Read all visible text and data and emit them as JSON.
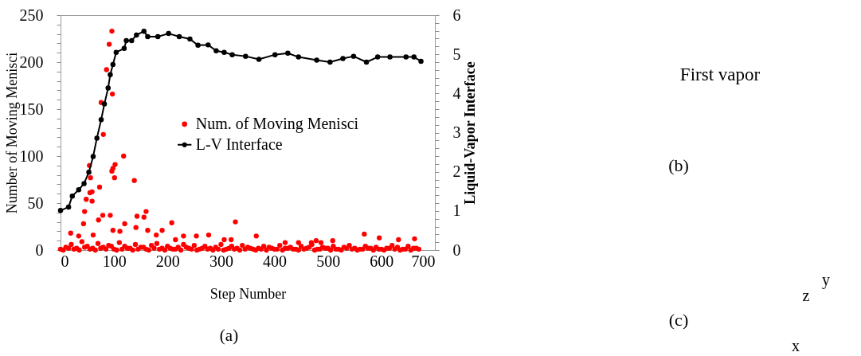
{
  "chart_data": [
    {
      "type": "scatter",
      "xlabel": "Step Number",
      "ylabel": "Number of Moving Menisci",
      "y2label": "Liquid-Vapor Interface",
      "annotations": [
        "(a)"
      ],
      "legend": "center",
      "marker": "circle",
      "xlim": [
        0,
        700
      ],
      "xticks": [
        0,
        100,
        200,
        300,
        400,
        500,
        600,
        700
      ],
      "ylim": [
        0,
        250
      ],
      "yticks": [
        0,
        {
          "value": 10,
          "label": null
        },
        {
          "value": 20,
          "label": null
        },
        {
          "value": 30,
          "label": null
        },
        {
          "value": 40,
          "label": null
        },
        50,
        {
          "value": 60,
          "label": null
        },
        {
          "value": 70,
          "label": null
        },
        {
          "value": 80,
          "label": null
        },
        {
          "value": 90,
          "label": null
        },
        100,
        {
          "value": 110,
          "label": null
        },
        {
          "value": 120,
          "label": null
        },
        {
          "value": 130,
          "label": null
        },
        {
          "value": 140,
          "label": null
        },
        150,
        {
          "value": 160,
          "label": null
        },
        {
          "value": 170,
          "label": null
        },
        {
          "value": 180,
          "label": null
        },
        {
          "value": 190,
          "label": null
        },
        200,
        {
          "value": 210,
          "label": null
        },
        {
          "value": 220,
          "label": null
        },
        {
          "value": 230,
          "label": null
        },
        {
          "value": 240,
          "label": null
        },
        250
      ],
      "y2lim": [
        0,
        6
      ],
      "y2ticks": [
        0,
        {
          "value": 0.2,
          "label": null
        },
        {
          "value": 0.4,
          "label": null
        },
        {
          "value": 0.6,
          "label": null
        },
        {
          "value": 0.8,
          "label": null
        },
        1,
        {
          "value": 1.2,
          "label": null
        },
        {
          "value": 1.4,
          "label": null
        },
        {
          "value": 1.6,
          "label": null
        },
        {
          "value": 1.8,
          "label": null
        },
        2,
        {
          "value": 2.2,
          "label": null
        },
        {
          "value": 2.4,
          "label": null
        },
        {
          "value": 2.6,
          "label": null
        },
        {
          "value": 2.8,
          "label": null
        },
        3,
        {
          "value": 3.2,
          "label": null
        },
        {
          "value": 3.4,
          "label": null
        },
        {
          "value": 3.6,
          "label": null
        },
        {
          "value": 3.8,
          "label": null
        },
        4,
        {
          "value": 4.2,
          "label": null
        },
        {
          "value": 4.4,
          "label": null
        },
        {
          "value": 4.6,
          "label": null
        },
        {
          "value": 4.8,
          "label": null
        },
        5,
        {
          "value": 5.2,
          "label": null
        },
        {
          "value": 5.4,
          "label": null
        },
        {
          "value": 5.6,
          "label": null
        },
        {
          "value": 5.8,
          "label": null
        },
        6
      ],
      "series": [
        {
          "name": "Num. of Moving Menisci",
          "type": "scatter",
          "color": "#ff0000",
          "x": [
            96,
            91,
            86,
            97,
            76,
            80,
            118,
            102,
            98,
            96,
            101,
            138,
            54,
            56,
            73,
            55,
            59,
            48,
            59,
            45,
            160,
            156,
            143,
            93,
            79,
            71,
            43,
            120,
            208,
            327,
            141,
            98,
            111,
            163,
            190,
            179,
            230,
            254,
            277,
            19,
            34,
            61,
            215,
            306,
            319,
            366,
            568,
            596,
            632,
            662,
            445,
            469,
            487,
            509,
            420,
            478,
            0,
            10,
            20,
            30,
            40,
            50,
            60,
            70,
            80,
            90,
            100,
            110,
            120,
            130,
            140,
            150,
            160,
            170,
            180,
            190,
            200,
            210,
            220,
            230,
            240,
            250,
            260,
            270,
            280,
            290,
            300,
            310,
            320,
            330,
            340,
            350,
            360,
            370,
            380,
            390,
            400,
            410,
            420,
            430,
            440,
            450,
            460,
            470,
            480,
            490,
            500,
            510,
            520,
            530,
            540,
            550,
            560,
            570,
            580,
            590,
            600,
            610,
            620,
            630,
            640,
            650,
            660,
            670,
            5,
            15,
            25,
            35,
            45,
            55,
            65,
            75,
            85,
            95,
            105,
            115,
            125,
            135,
            145,
            155,
            165,
            175,
            185,
            195,
            205,
            215,
            225,
            235,
            245,
            255,
            265,
            275,
            285,
            295,
            305,
            315,
            325,
            335,
            345,
            355,
            365,
            375,
            385,
            395,
            405,
            415,
            425,
            435,
            445,
            455,
            465,
            475,
            485,
            495,
            505,
            515,
            525,
            535,
            545,
            555,
            565,
            575,
            585,
            595,
            605,
            615,
            625,
            635,
            645,
            655,
            665
          ],
          "values": [
            233,
            219,
            192,
            166,
            157,
            123,
            100,
            91,
            87,
            84,
            77,
            74,
            90,
            77,
            67,
            61,
            62,
            54,
            52,
            41,
            41,
            35,
            36,
            37,
            37,
            32,
            28,
            28,
            29,
            30,
            24,
            21,
            20,
            21,
            21,
            16,
            15,
            15,
            16,
            18,
            15,
            16,
            11,
            11,
            11,
            15,
            17,
            13,
            11,
            12,
            8,
            8,
            8,
            10,
            8,
            10,
            1,
            3,
            6,
            2,
            9,
            4,
            2,
            7,
            3,
            5,
            1,
            8,
            4,
            2,
            6,
            3,
            1,
            5,
            7,
            2,
            4,
            1,
            3,
            6,
            2,
            5,
            1,
            4,
            2,
            3,
            6,
            1,
            4,
            2,
            5,
            3,
            1,
            2,
            4,
            3,
            1,
            5,
            2,
            3,
            1,
            4,
            2,
            6,
            1,
            3,
            2,
            4,
            1,
            3,
            5,
            2,
            1,
            4,
            2,
            3,
            1,
            2,
            5,
            3,
            1,
            4,
            2,
            1,
            0,
            2,
            1,
            0,
            3,
            1,
            0,
            2,
            1,
            4,
            0,
            1,
            2,
            0,
            1,
            3,
            0,
            2,
            1,
            0,
            2,
            1,
            0,
            3,
            1,
            0,
            2,
            1,
            0,
            1,
            0,
            2,
            1,
            0,
            1,
            2,
            0,
            1,
            0,
            2,
            1,
            0,
            2,
            1,
            0,
            1,
            3,
            0,
            1,
            2,
            0,
            1,
            0,
            2,
            1,
            0,
            1,
            2,
            0,
            1,
            0,
            2,
            1,
            0,
            1,
            0,
            2
          ]
        },
        {
          "name": "L-V Interface",
          "type": "line",
          "axis": "y2",
          "color": "#000000",
          "line_style": "solid",
          "x": [
            0,
            15,
            22,
            34,
            44,
            53,
            61,
            68,
            76,
            82,
            89,
            93,
            98,
            104,
            119,
            123,
            133,
            142,
            156,
            163,
            182,
            202,
            222,
            242,
            257,
            276,
            291,
            306,
            321,
            346,
            371,
            401,
            425,
            445,
            479,
            504,
            528,
            548,
            572,
            593,
            616,
            646,
            661,
            674
          ],
          "values": [
            1.01,
            1.1,
            1.38,
            1.54,
            1.7,
            1.99,
            2.39,
            2.86,
            3.33,
            3.73,
            4.14,
            4.48,
            4.74,
            5.05,
            5.15,
            5.35,
            5.35,
            5.49,
            5.59,
            5.45,
            5.45,
            5.53,
            5.45,
            5.39,
            5.23,
            5.24,
            5.09,
            5.05,
            4.99,
            4.95,
            4.87,
            4.99,
            5.03,
            4.93,
            4.85,
            4.8,
            4.89,
            4.95,
            4.8,
            4.93,
            4.93,
            4.93,
            4.93,
            4.82
          ]
        }
      ]
    },
    {
      "type": "other",
      "annotations": [
        "First vapor",
        "(b)",
        "(c)",
        "z",
        "y",
        "x"
      ]
    }
  ]
}
